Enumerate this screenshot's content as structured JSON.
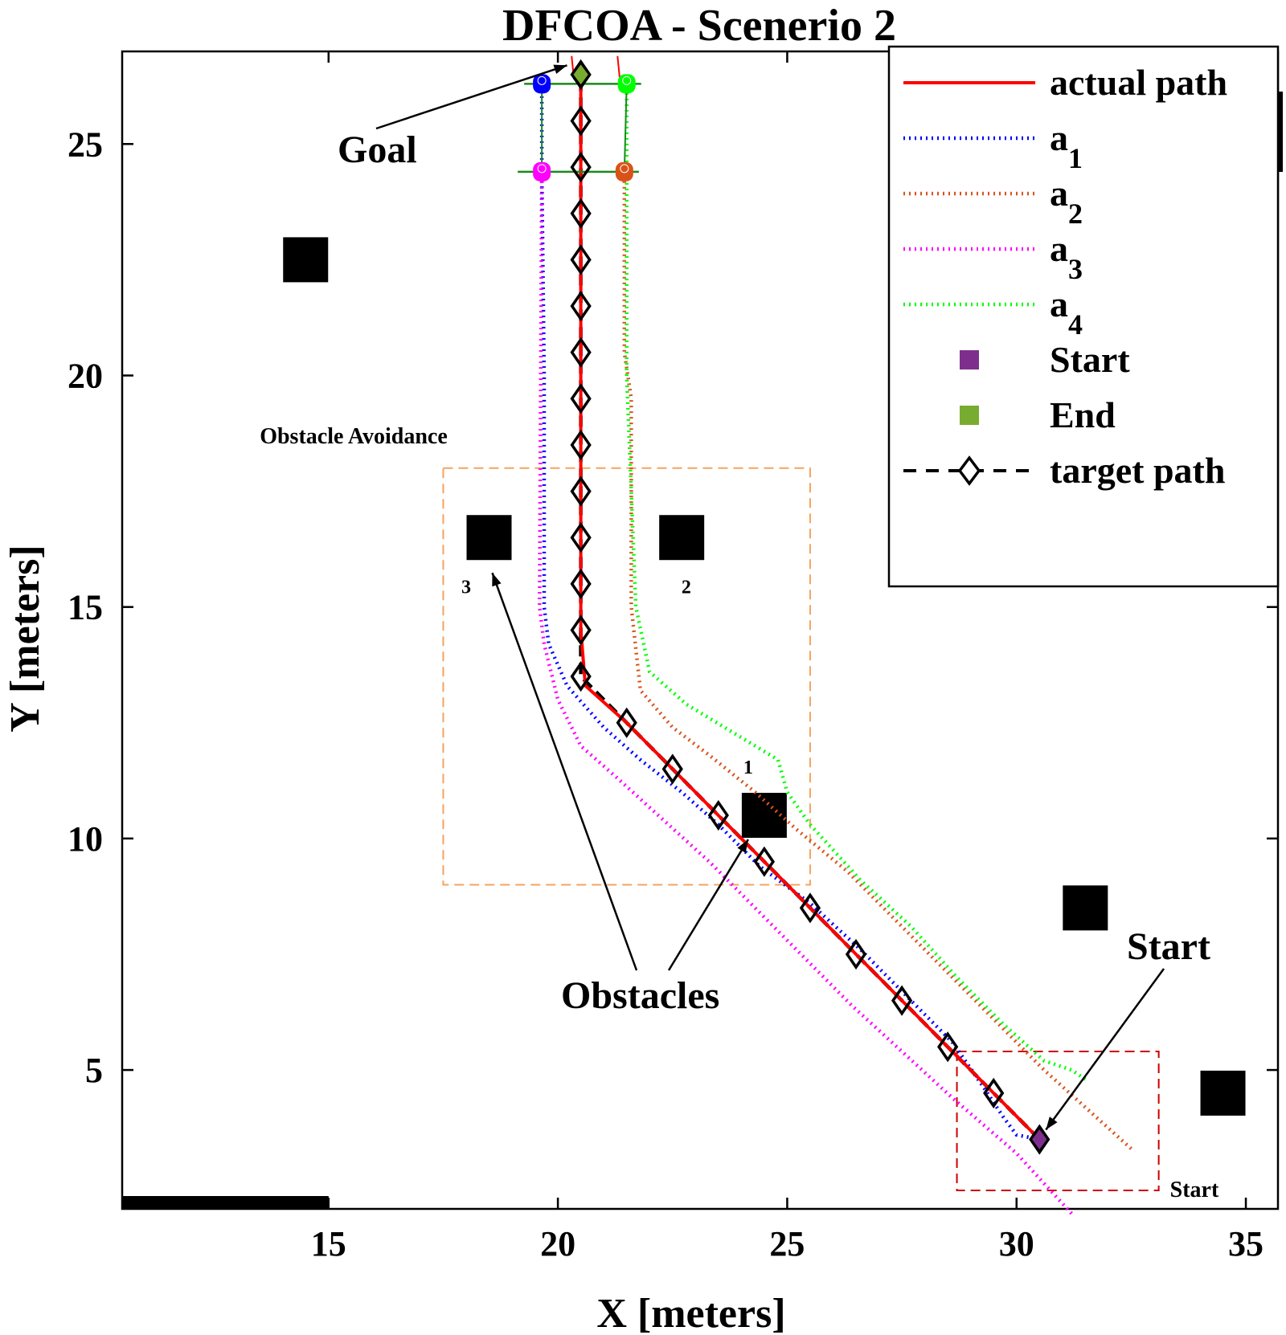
{
  "chart_data": {
    "type": "line",
    "title": "DFCOA - Scenerio 2",
    "xlabel": "X [meters]",
    "ylabel": "Y [meters]",
    "xlim": [
      10.5,
      35.7
    ],
    "ylim": [
      2.0,
      27.0
    ],
    "xticks": [
      15,
      20,
      25,
      30,
      35
    ],
    "yticks": [
      5,
      10,
      15,
      20,
      25
    ],
    "colors": {
      "actual": "#ff0000",
      "a1": "#0000ff",
      "a2": "#d95319",
      "a3": "#ff00ff",
      "a4": "#00ff00",
      "start": "#7e2f8e",
      "end": "#77ac30",
      "target": "#000000",
      "obstacle": "#000000",
      "orange_box": "#f4a460",
      "red_box": "#cc0000",
      "orange_label": "#e06c1a"
    },
    "series": [
      {
        "name": "actual path",
        "key": "actual",
        "style": "solid",
        "x": [
          30.5,
          29.5,
          28.5,
          27.5,
          26.5,
          25.5,
          24.5,
          23.5,
          22.5,
          21.5,
          20.6,
          20.5,
          20.5,
          20.5
        ],
        "y": [
          3.5,
          4.5,
          5.5,
          6.5,
          7.5,
          8.5,
          9.5,
          10.5,
          11.5,
          12.5,
          13.3,
          14.5,
          20.0,
          26.5
        ]
      },
      {
        "name": "a",
        "sub": "1",
        "key": "a1",
        "style": "dotted",
        "x": [
          30.5,
          30.0,
          29.7,
          29.3,
          28.6,
          27.6,
          26.6,
          25.5,
          24.4,
          23.5,
          22.7,
          21.8,
          21.0,
          20.2,
          19.8,
          19.7,
          19.7,
          19.65,
          19.65
        ],
        "y": [
          3.5,
          3.6,
          4.0,
          4.6,
          5.6,
          6.6,
          7.6,
          8.6,
          9.4,
          10.3,
          11.0,
          11.7,
          12.4,
          13.3,
          14.2,
          15.0,
          20.0,
          24.4,
          26.3
        ]
      },
      {
        "name": "a",
        "sub": "2",
        "key": "a2",
        "style": "dotted",
        "x": [
          32.5,
          30.6,
          29.4,
          28.3,
          27.3,
          26.3,
          25.2,
          24.3,
          23.3,
          22.5,
          21.8,
          21.6,
          21.6,
          21.45,
          21.45
        ],
        "y": [
          3.3,
          5.0,
          6.2,
          7.3,
          8.3,
          9.3,
          10.2,
          11.0,
          11.8,
          12.4,
          13.2,
          15.0,
          19.5,
          20.5,
          24.4
        ]
      },
      {
        "name": "a",
        "sub": "3",
        "key": "a3",
        "style": "dotted",
        "x": [
          31.2,
          30.0,
          28.6,
          27.5,
          26.4,
          25.4,
          24.2,
          23.3,
          22.3,
          21.3,
          20.5,
          20.0,
          19.7,
          19.6,
          19.65
        ],
        "y": [
          1.9,
          3.2,
          4.4,
          5.4,
          6.4,
          7.4,
          8.6,
          9.5,
          10.4,
          11.3,
          12.0,
          13.0,
          14.2,
          15.0,
          24.4
        ]
      },
      {
        "name": "a",
        "sub": "4",
        "key": "a4",
        "style": "dotted",
        "x": [
          31.5,
          31.2,
          30.6,
          29.7,
          28.7,
          27.7,
          26.6,
          25.5,
          25.0,
          24.8,
          23.8,
          22.8,
          22.0,
          21.7,
          21.5,
          21.5
        ],
        "y": [
          4.8,
          5.0,
          5.2,
          6.0,
          7.0,
          8.1,
          9.1,
          10.3,
          11.0,
          11.7,
          12.3,
          12.9,
          13.6,
          15.0,
          20.0,
          26.3
        ]
      },
      {
        "name": "target path",
        "key": "target",
        "style": "dashed-diamond",
        "x": [
          30.5,
          29.5,
          28.5,
          27.5,
          26.5,
          25.5,
          24.5,
          23.5,
          22.5,
          21.5,
          20.5,
          20.5,
          20.5,
          20.5,
          20.5,
          20.5,
          20.5,
          20.5,
          20.5,
          20.5,
          20.5,
          20.5,
          20.5,
          20.5
        ],
        "y": [
          3.5,
          4.5,
          5.5,
          6.5,
          7.5,
          8.5,
          9.5,
          10.5,
          11.5,
          12.5,
          13.5,
          14.5,
          15.5,
          16.5,
          17.5,
          18.5,
          19.5,
          20.5,
          21.5,
          22.5,
          23.5,
          24.5,
          25.5,
          26.5
        ]
      }
    ],
    "start_point": {
      "x": 30.5,
      "y": 3.5
    },
    "end_point": {
      "x": 20.5,
      "y": 26.5
    },
    "robots": [
      {
        "key": "a1",
        "x": 19.65,
        "y": 26.3
      },
      {
        "key": "a4",
        "x": 21.5,
        "y": 26.3
      },
      {
        "key": "a3",
        "x": 19.65,
        "y": 24.4
      },
      {
        "key": "a2",
        "x": 21.45,
        "y": 24.4
      }
    ],
    "obstacles": [
      {
        "x": 14.5,
        "y": 22.5
      },
      {
        "x": 18.5,
        "y": 16.5
      },
      {
        "x": 22.7,
        "y": 16.5
      },
      {
        "x": 24.5,
        "y": 10.5
      },
      {
        "x": 31.5,
        "y": 8.5
      },
      {
        "x": 34.5,
        "y": 4.5
      }
    ],
    "boxes": [
      {
        "key": "orange_box",
        "x0": 17.5,
        "x1": 25.5,
        "y0": 9.0,
        "y1": 18.0
      },
      {
        "key": "red_box",
        "x0": 28.7,
        "x1": 33.1,
        "y0": 2.4,
        "y1": 5.4
      }
    ],
    "annotations": {
      "goal": "Goal",
      "start": "Start",
      "obstacles": "Obstacles",
      "obstacle_avoidance": "Obstacle Avoidance",
      "start_box": "Start",
      "n1": "1",
      "n2": "2",
      "n3": "3"
    },
    "legend": {
      "position": "top-right",
      "entries": [
        {
          "label": "actual path",
          "key": "actual",
          "marker": "line-solid"
        },
        {
          "label": "a",
          "sub": "1",
          "key": "a1",
          "marker": "line-dotted"
        },
        {
          "label": "a",
          "sub": "2",
          "key": "a2",
          "marker": "line-dotted"
        },
        {
          "label": "a",
          "sub": "3",
          "key": "a3",
          "marker": "line-dotted"
        },
        {
          "label": "a",
          "sub": "4",
          "key": "a4",
          "marker": "line-dotted"
        },
        {
          "label": "Start",
          "key": "start",
          "marker": "square"
        },
        {
          "label": "End",
          "key": "end",
          "marker": "square"
        },
        {
          "label": "target path",
          "key": "target",
          "marker": "dashed-diamond"
        }
      ]
    }
  }
}
